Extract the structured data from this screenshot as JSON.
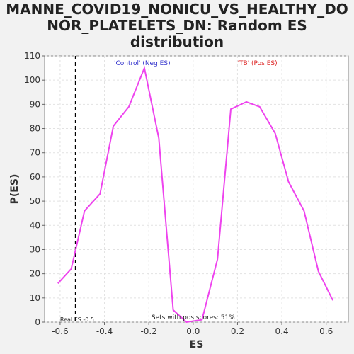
{
  "title_line1": "MANNE_COVID19_NONICU_VS_HEALTHY_DO",
  "title_line2": "NOR_PLATELETS_DN: Random ES",
  "title_line3": "distribution",
  "chart_data": {
    "type": "line",
    "title": "MANNE_COVID19_NONICU_VS_HEALTHY_DONOR_PLATELETS_DN: Random ES distribution",
    "xlabel": "ES",
    "ylabel": "P(ES)",
    "xlim": [
      -0.67,
      0.7
    ],
    "ylim": [
      0,
      110
    ],
    "xticks": [
      -0.6,
      -0.4,
      -0.2,
      0.0,
      0.2,
      0.4,
      0.6
    ],
    "xtick_labels": [
      "-0.6",
      "-0.4",
      "-0.2",
      "0.0",
      "0.2",
      "0.4",
      "0.6"
    ],
    "yticks": [
      0,
      10,
      20,
      30,
      40,
      50,
      60,
      70,
      80,
      90,
      100,
      110
    ],
    "grid": true,
    "series": [
      {
        "color": "#ee44ee",
        "x": [
          -0.61,
          -0.55,
          -0.49,
          -0.42,
          -0.36,
          -0.29,
          -0.22,
          -0.155,
          -0.09,
          -0.03,
          0.04,
          0.11,
          0.17,
          0.24,
          0.3,
          0.37,
          0.43,
          0.5,
          0.565,
          0.63
        ],
        "y": [
          16,
          22,
          46,
          53,
          81,
          89,
          105,
          76,
          5,
          0,
          1,
          26,
          88,
          91,
          89,
          78,
          58,
          46,
          21,
          9
        ]
      }
    ],
    "real_es": -0.53,
    "real_es_label": "Real ES -0.5",
    "annotations": {
      "neg_label": "'Control' (Neg ES)",
      "neg_color": "#3333cc",
      "pos_label": "'TB' (Pos ES)",
      "pos_color": "#dd2222",
      "sets_label": "Sets with pos scores: 51%"
    }
  }
}
